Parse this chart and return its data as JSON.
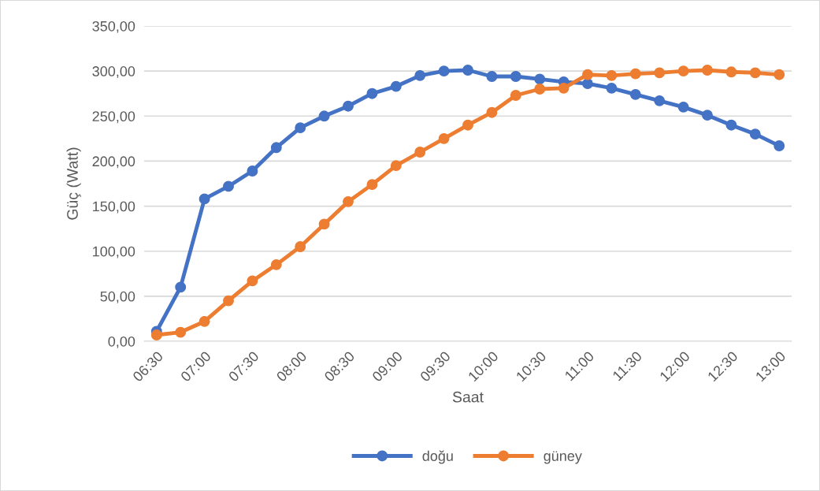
{
  "chart_data": {
    "type": "line",
    "xlabel": "Saat",
    "ylabel": "Güç (Watt)",
    "x": [
      6.5,
      6.75,
      7,
      7.25,
      7.5,
      7.75,
      8,
      8.25,
      8.5,
      8.75,
      9,
      9.25,
      9.5,
      9.75,
      10,
      10.25,
      10.5,
      10.75,
      11,
      11.25,
      11.5,
      11.75,
      12,
      12.25,
      12.5,
      12.75,
      13
    ],
    "series": [
      {
        "name": "doğu",
        "color": "#4472c4",
        "values": [
          11,
          60,
          158,
          172,
          189,
          215,
          237,
          250,
          261,
          275,
          283,
          295,
          300,
          301,
          294,
          294,
          291,
          288,
          286,
          281,
          274,
          267,
          260,
          251,
          240,
          230,
          217
        ]
      },
      {
        "name": "güney",
        "color": "#ed7d31",
        "values": [
          7,
          10,
          22,
          45,
          67,
          85,
          105,
          130,
          155,
          174,
          195,
          210,
          225,
          240,
          254,
          273,
          280,
          281,
          296,
          295,
          297,
          298,
          300,
          301,
          299,
          298,
          296
        ]
      }
    ],
    "xlim": [
      6.37,
      13.13
    ],
    "xticks": [
      {
        "value": 6.5,
        "label": "06:30"
      },
      {
        "value": 7,
        "label": "07:00"
      },
      {
        "value": 7.5,
        "label": "07:30"
      },
      {
        "value": 8,
        "label": "08:00"
      },
      {
        "value": 8.5,
        "label": "08:30"
      },
      {
        "value": 9,
        "label": "09:00"
      },
      {
        "value": 9.5,
        "label": "09:30"
      },
      {
        "value": 10,
        "label": "10:00"
      },
      {
        "value": 10.5,
        "label": "10:30"
      },
      {
        "value": 11,
        "label": "11:00"
      },
      {
        "value": 11.5,
        "label": "11:30"
      },
      {
        "value": 12,
        "label": "12:00"
      },
      {
        "value": 12.5,
        "label": "12:30"
      },
      {
        "value": 13,
        "label": "13:00"
      }
    ],
    "ylim": [
      0,
      350
    ],
    "yticks": [
      {
        "value": 0,
        "label": "0,00"
      },
      {
        "value": 50,
        "label": "50,00"
      },
      {
        "value": 100,
        "label": "100,00"
      },
      {
        "value": 150,
        "label": "150,00"
      },
      {
        "value": 200,
        "label": "200,00"
      },
      {
        "value": 250,
        "label": "250,00"
      },
      {
        "value": 300,
        "label": "300,00"
      },
      {
        "value": 350,
        "label": "350,00"
      }
    ],
    "grid": "y",
    "legend": "bottom",
    "marker": "circle",
    "line_style": "solid"
  }
}
